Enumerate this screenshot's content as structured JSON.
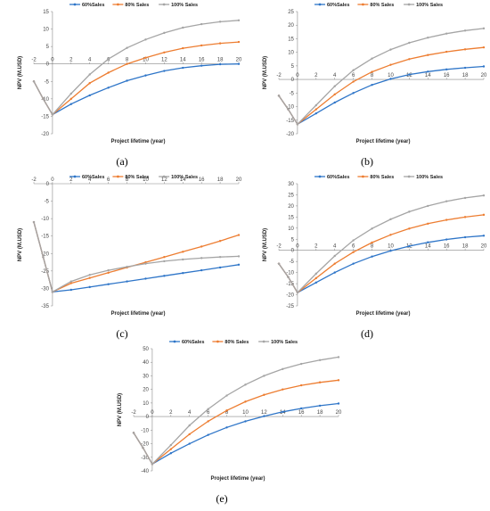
{
  "chart_data": [
    {
      "type": "line",
      "panel": "a",
      "caption": "(a)",
      "xlabel": "Project lifetime (year)",
      "ylabel": "NPV (M.USD)",
      "xlim": [
        -2,
        20
      ],
      "ylim": [
        -20,
        15
      ],
      "xticks": [
        "-2",
        "0",
        "2",
        "4",
        "6",
        "8",
        "10",
        "12",
        "14",
        "16",
        "18",
        "20"
      ],
      "yticks": [
        "-20",
        "-15",
        "-10",
        "-5",
        "0",
        "5",
        "10",
        "15"
      ],
      "legend_position": "top-center",
      "grid": false,
      "series": [
        {
          "name": "60%Sales",
          "color": "#2e75c8",
          "x": [
            -2,
            -1,
            0,
            2,
            4,
            6,
            8,
            10,
            12,
            14,
            16,
            18,
            20
          ],
          "y": [
            -5,
            -10,
            -14.5,
            -11.5,
            -9,
            -6.8,
            -4.8,
            -3.3,
            -2,
            -1.1,
            -0.5,
            -0.1,
            0
          ]
        },
        {
          "name": "80% Sales",
          "color": "#ed7d31",
          "x": [
            -2,
            -1,
            0,
            2,
            4,
            6,
            8,
            10,
            12,
            14,
            16,
            18,
            20
          ],
          "y": [
            -5,
            -10,
            -14.5,
            -10,
            -5.5,
            -2.5,
            0,
            1.8,
            3.3,
            4.5,
            5.3,
            5.9,
            6.3
          ]
        },
        {
          "name": "100% Sales",
          "color": "#a5a5a5",
          "x": [
            -2,
            -1,
            0,
            2,
            4,
            6,
            8,
            10,
            12,
            14,
            16,
            18,
            20
          ],
          "y": [
            -5,
            -10,
            -14.5,
            -8.5,
            -3,
            1.4,
            4.6,
            7,
            8.9,
            10.4,
            11.4,
            12.1,
            12.5
          ]
        }
      ]
    },
    {
      "type": "line",
      "panel": "b",
      "caption": "(b)",
      "xlabel": "Project lifetime (year)",
      "ylabel": "NPV (M.USD)",
      "xlim": [
        -2,
        20
      ],
      "ylim": [
        -20,
        25
      ],
      "xticks": [
        "-2",
        "0",
        "2",
        "4",
        "6",
        "8",
        "10",
        "12",
        "14",
        "16",
        "18",
        "20"
      ],
      "yticks": [
        "-20",
        "-15",
        "-10",
        "-5",
        "0",
        "5",
        "10",
        "15",
        "20",
        "25"
      ],
      "legend_position": "top-center",
      "grid": false,
      "series": [
        {
          "name": "60%Sales",
          "color": "#2e75c8",
          "x": [
            -2,
            -1,
            0,
            2,
            4,
            6,
            8,
            10,
            12,
            14,
            16,
            18,
            20
          ],
          "y": [
            -6,
            -11,
            -16.5,
            -12.5,
            -8.5,
            -5,
            -2,
            0.2,
            1.8,
            2.9,
            3.7,
            4.3,
            4.8
          ]
        },
        {
          "name": "80% Sales",
          "color": "#ed7d31",
          "x": [
            -2,
            -1,
            0,
            2,
            4,
            6,
            8,
            10,
            12,
            14,
            16,
            18,
            20
          ],
          "y": [
            -6,
            -11,
            -16.5,
            -11,
            -5.5,
            -0.8,
            2.8,
            5.4,
            7.5,
            9,
            10.2,
            11.1,
            11.8
          ]
        },
        {
          "name": "100% Sales",
          "color": "#a5a5a5",
          "x": [
            -2,
            -1,
            0,
            2,
            4,
            6,
            8,
            10,
            12,
            14,
            16,
            18,
            20
          ],
          "y": [
            -6,
            -11,
            -16.5,
            -9.5,
            -2.5,
            3.4,
            7.7,
            11,
            13.5,
            15.4,
            16.9,
            18,
            18.8
          ]
        }
      ]
    },
    {
      "type": "line",
      "panel": "c",
      "caption": "(c)",
      "xlabel": "Project lifetime (year)",
      "ylabel": "NPV (M.USD)",
      "xlim": [
        -2,
        20
      ],
      "ylim": [
        -35,
        0
      ],
      "xticks": [
        "-2",
        "0",
        "2",
        "4",
        "6",
        "8",
        "10",
        "12",
        "14",
        "16",
        "18",
        "20"
      ],
      "yticks": [
        "-35",
        "-30",
        "-25",
        "-20",
        "-15",
        "-10",
        "-5",
        "0"
      ],
      "legend_position": "top-center",
      "grid": false,
      "series": [
        {
          "name": "60%Sales",
          "color": "#2e75c8",
          "x": [
            -2,
            -1,
            0,
            2,
            4,
            6,
            8,
            10,
            12,
            14,
            16,
            18,
            20
          ],
          "y": [
            -11,
            -21,
            -31,
            -30.4,
            -29.6,
            -28.8,
            -28,
            -27.2,
            -26.4,
            -25.6,
            -24.8,
            -24,
            -23.2
          ]
        },
        {
          "name": "80% Sales",
          "color": "#ed7d31",
          "x": [
            -2,
            -1,
            0,
            2,
            4,
            6,
            8,
            10,
            12,
            14,
            16,
            18,
            20
          ],
          "y": [
            -11,
            -21,
            -31,
            -28.5,
            -27,
            -25.5,
            -24,
            -22.5,
            -21,
            -19.5,
            -18,
            -16.4,
            -14.7
          ]
        },
        {
          "name": "100% Sales",
          "color": "#a5a5a5",
          "x": [
            -2,
            -1,
            0,
            2,
            4,
            6,
            8,
            10,
            12,
            14,
            16,
            18,
            20
          ],
          "y": [
            -11,
            -21,
            -31,
            -28,
            -26.1,
            -24.8,
            -23.8,
            -22.9,
            -22.2,
            -21.7,
            -21.3,
            -21,
            -20.8
          ]
        }
      ]
    },
    {
      "type": "line",
      "panel": "d",
      "caption": "(d)",
      "xlabel": "Project lifetime (year)",
      "ylabel": "NPV (M.USD)",
      "xlim": [
        -2,
        20
      ],
      "ylim": [
        -25,
        30
      ],
      "xticks": [
        "-2",
        "0",
        "2",
        "4",
        "6",
        "8",
        "10",
        "12",
        "14",
        "16",
        "18",
        "20"
      ],
      "yticks": [
        "-25",
        "-20",
        "-15",
        "-10",
        "-5",
        "0",
        "5",
        "10",
        "15",
        "20",
        "25",
        "30"
      ],
      "legend_position": "top-center",
      "grid": false,
      "series": [
        {
          "name": "60%Sales",
          "color": "#2e75c8",
          "x": [
            -2,
            -1,
            0,
            2,
            4,
            6,
            8,
            10,
            12,
            14,
            16,
            18,
            20
          ],
          "y": [
            -6,
            -12,
            -19,
            -14.5,
            -10,
            -6,
            -2.8,
            -0.2,
            1.9,
            3.6,
            4.9,
            5.9,
            6.6
          ]
        },
        {
          "name": "80% Sales",
          "color": "#ed7d31",
          "x": [
            -2,
            -1,
            0,
            2,
            4,
            6,
            8,
            10,
            12,
            14,
            16,
            18,
            20
          ],
          "y": [
            -6,
            -12,
            -19,
            -12.5,
            -6,
            -0.8,
            3.5,
            7,
            9.8,
            12,
            13.7,
            15,
            16
          ]
        },
        {
          "name": "100% Sales",
          "color": "#a5a5a5",
          "x": [
            -2,
            -1,
            0,
            2,
            4,
            6,
            8,
            10,
            12,
            14,
            16,
            18,
            20
          ],
          "y": [
            -6,
            -12,
            -19,
            -10.5,
            -2.5,
            4.5,
            9.8,
            14,
            17.4,
            20,
            22.1,
            23.6,
            24.7
          ]
        }
      ]
    },
    {
      "type": "line",
      "panel": "e",
      "caption": "(e)",
      "xlabel": "Project lifetime (year)",
      "ylabel": "NPV (M.USD)",
      "xlim": [
        -2,
        20
      ],
      "ylim": [
        -40,
        50
      ],
      "xticks": [
        "-2",
        "0",
        "2",
        "4",
        "6",
        "8",
        "10",
        "12",
        "14",
        "16",
        "18",
        "20"
      ],
      "yticks": [
        "-40",
        "-30",
        "-20",
        "-10",
        "0",
        "10",
        "20",
        "30",
        "40",
        "50"
      ],
      "legend_position": "top-center",
      "grid": false,
      "series": [
        {
          "name": "60%Sales",
          "color": "#2e75c8",
          "x": [
            -2,
            -1,
            0,
            2,
            4,
            6,
            8,
            10,
            12,
            14,
            16,
            18,
            20
          ],
          "y": [
            -12,
            -23,
            -35,
            -27,
            -20,
            -13.5,
            -8,
            -3.5,
            0.3,
            3.5,
            6,
            8,
            9.6
          ]
        },
        {
          "name": "80% Sales",
          "color": "#ed7d31",
          "x": [
            -2,
            -1,
            0,
            2,
            4,
            6,
            8,
            10,
            12,
            14,
            16,
            18,
            20
          ],
          "y": [
            -12,
            -23,
            -35,
            -24,
            -13,
            -3.5,
            4.5,
            11,
            16,
            20,
            23,
            25.2,
            26.8
          ]
        },
        {
          "name": "100% Sales",
          "color": "#a5a5a5",
          "x": [
            -2,
            -1,
            0,
            2,
            4,
            6,
            8,
            10,
            12,
            14,
            16,
            18,
            20
          ],
          "y": [
            -12,
            -23,
            -35,
            -21,
            -6.5,
            5.5,
            15.5,
            23.5,
            30,
            35,
            38.8,
            41.6,
            43.8
          ]
        }
      ]
    }
  ]
}
